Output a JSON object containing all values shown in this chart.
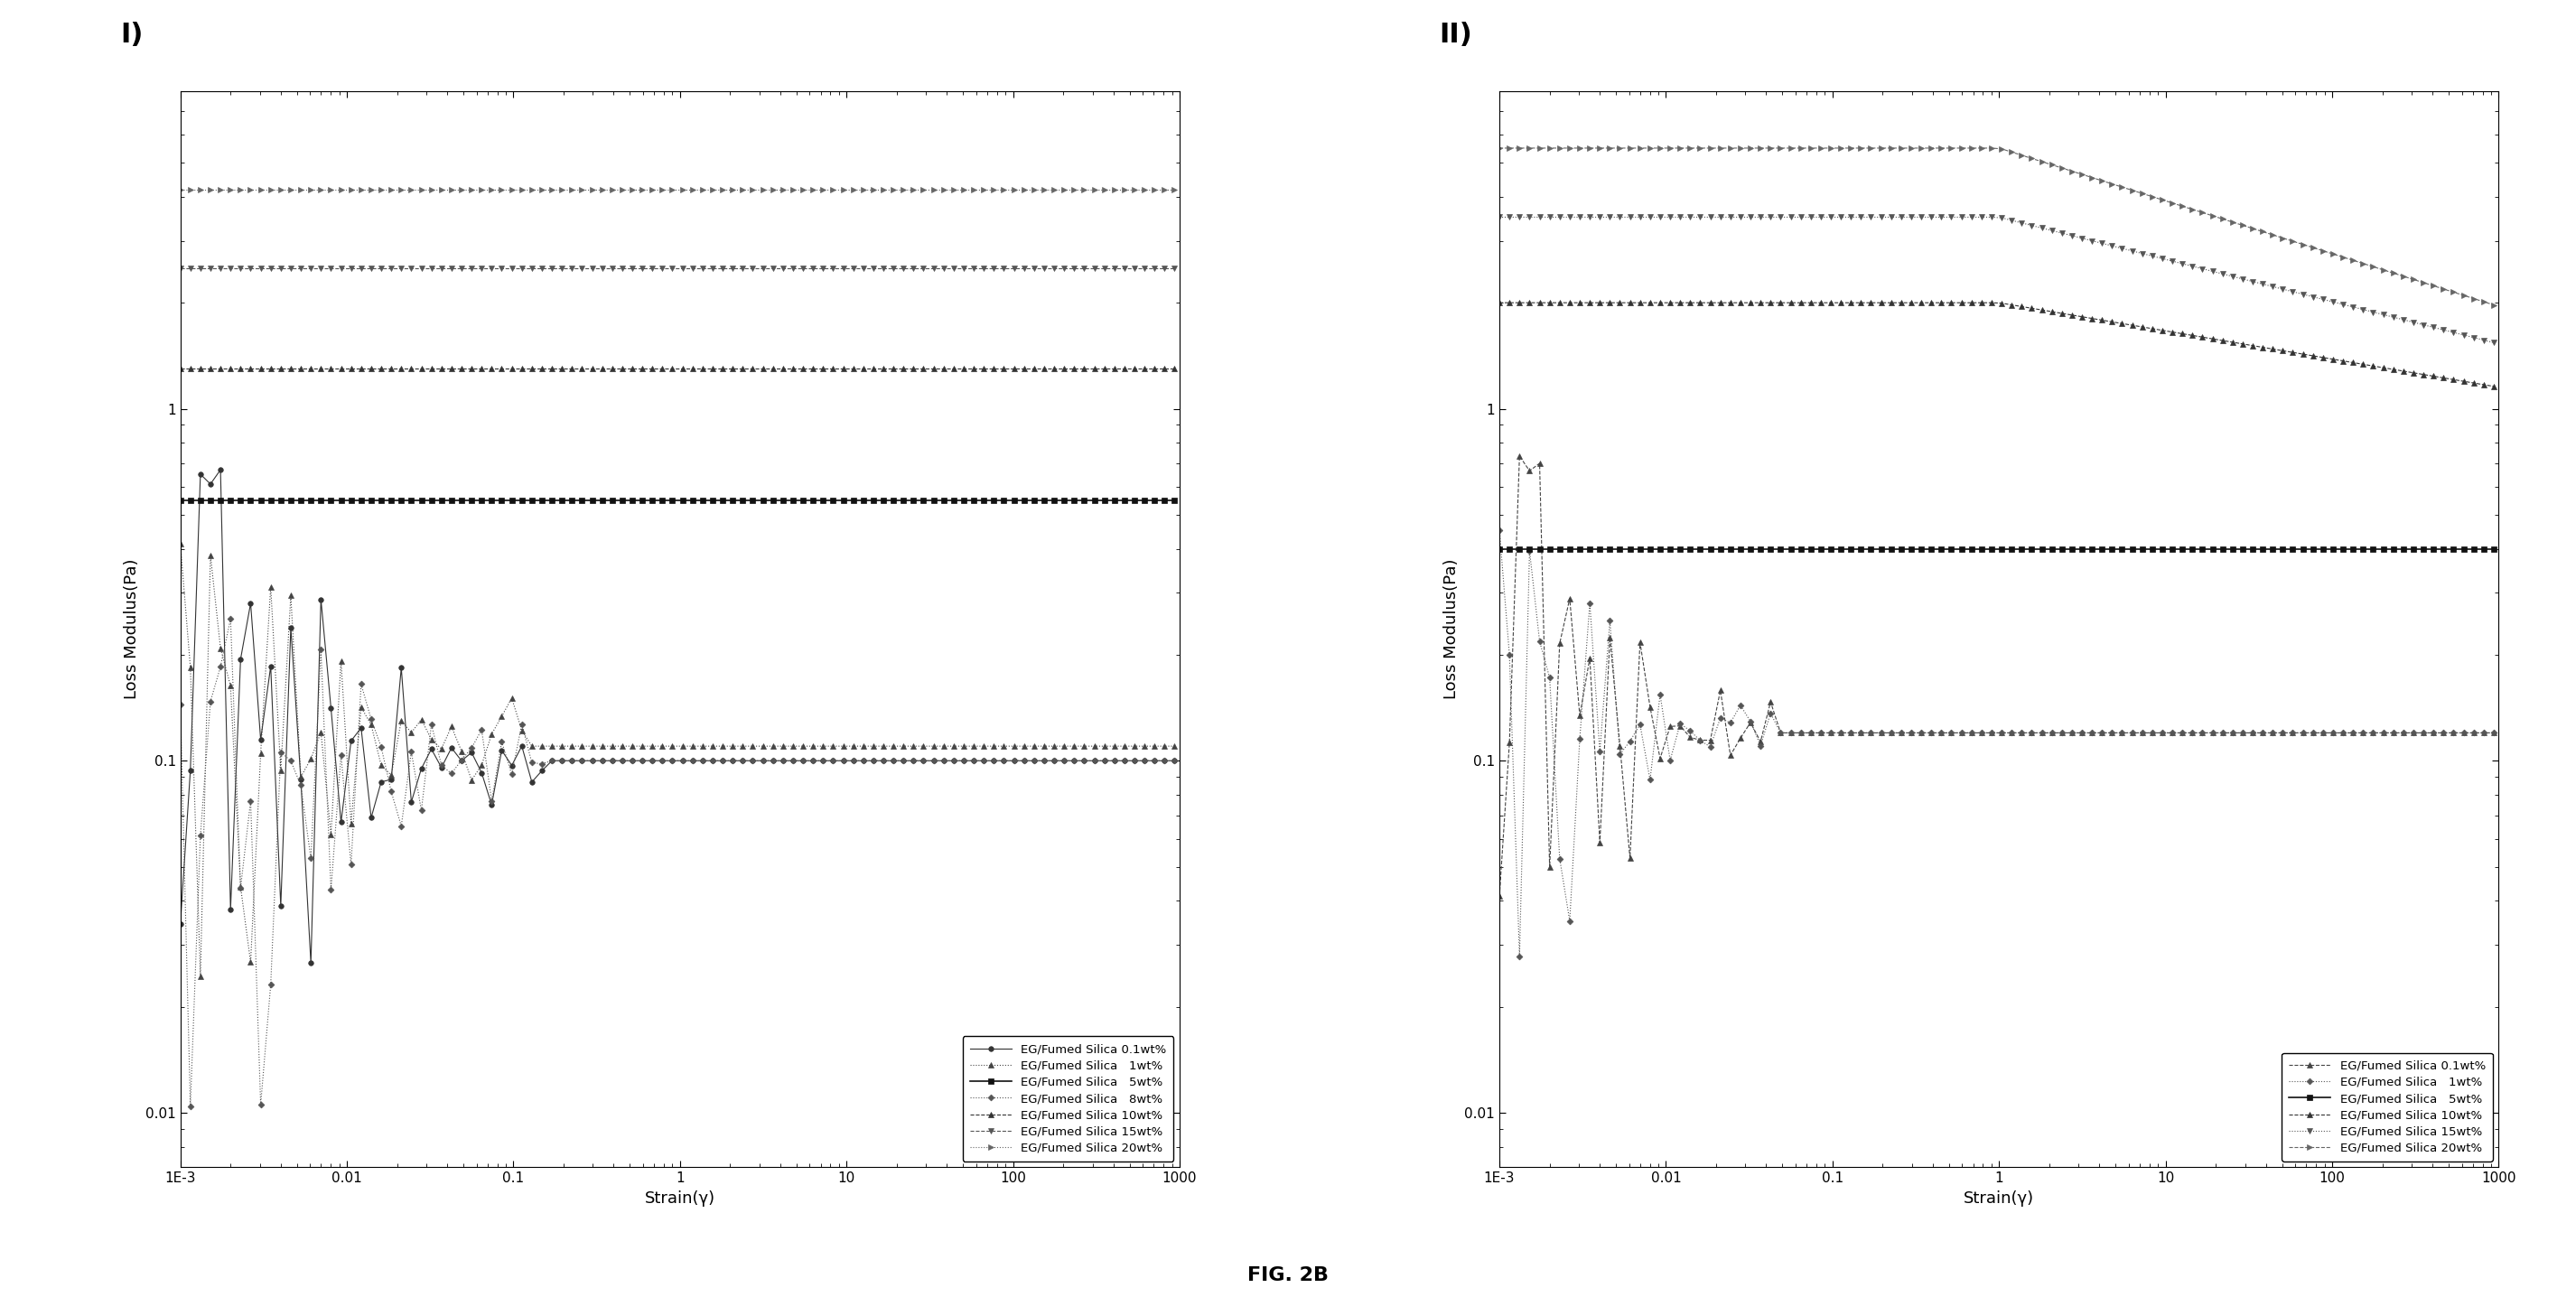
{
  "title": "FIG. 2B",
  "panel_I_label": "I)",
  "panel_II_label": "II)",
  "xlabel": "Strain(γ)",
  "ylabel": "Loss Modulus(Pa)",
  "xlim": [
    0.001,
    1000
  ],
  "ylim": [
    0.007,
    8
  ],
  "background_color": "#ffffff",
  "series_I": [
    {
      "label": "EG/Fumed Silica 0.1wt%",
      "level": 0.1,
      "marker": "o",
      "ls": "-",
      "color": "#333333",
      "ms": 4,
      "lw": 0.8,
      "oscillate": true,
      "osc_end": 0.05,
      "flat": true
    },
    {
      "label": "EG/Fumed Silica   1wt%",
      "level": 0.11,
      "marker": "^",
      "ls": ":",
      "color": "#444444",
      "ms": 4,
      "lw": 0.8,
      "oscillate": true,
      "osc_end": 0.04,
      "flat": true
    },
    {
      "label": "EG/Fumed Silica   5wt%",
      "level": 0.55,
      "marker": "s",
      "ls": "-",
      "color": "#111111",
      "ms": 5,
      "lw": 1.2,
      "oscillate": false,
      "osc_end": 0,
      "flat": true
    },
    {
      "label": "EG/Fumed Silica   8wt%",
      "level": 0.1,
      "marker": "D",
      "ls": ":",
      "color": "#555555",
      "ms": 3.5,
      "lw": 0.8,
      "oscillate": true,
      "osc_end": 0.05,
      "flat": true
    },
    {
      "label": "EG/Fumed Silica 10wt%",
      "level": 1.3,
      "marker": "^",
      "ls": "--",
      "color": "#333333",
      "ms": 4,
      "lw": 0.8,
      "oscillate": false,
      "osc_end": 0,
      "flat": true
    },
    {
      "label": "EG/Fumed Silica 15wt%",
      "level": 2.5,
      "marker": "v",
      "ls": "--",
      "color": "#555555",
      "ms": 4,
      "lw": 0.8,
      "oscillate": false,
      "osc_end": 0,
      "flat": true
    },
    {
      "label": "EG/Fumed Silica 20wt%",
      "level": 4.2,
      "marker": ">",
      "ls": ":",
      "color": "#666666",
      "ms": 4,
      "lw": 0.8,
      "oscillate": false,
      "osc_end": 0,
      "flat": true
    }
  ],
  "series_II": [
    {
      "label": "EG/Fumed Silica 0.1wt%",
      "level": 0.12,
      "marker": "^",
      "ls": "--",
      "color": "#444444",
      "ms": 4,
      "lw": 0.8,
      "oscillate": true,
      "osc_end": 0.015,
      "flat": true,
      "slope": 0.0
    },
    {
      "label": "EG/Fumed Silica   1wt%",
      "level": 0.12,
      "marker": "D",
      "ls": ":",
      "color": "#555555",
      "ms": 3.5,
      "lw": 0.8,
      "oscillate": true,
      "osc_end": 0.015,
      "flat": true,
      "slope": 0.0
    },
    {
      "label": "EG/Fumed Silica   5wt%",
      "level": 0.4,
      "marker": "s",
      "ls": "-",
      "color": "#111111",
      "ms": 5,
      "lw": 1.2,
      "oscillate": false,
      "osc_end": 0,
      "flat": true,
      "slope": 0.0
    },
    {
      "label": "EG/Fumed Silica 10wt%",
      "level": 2.0,
      "marker": "^",
      "ls": "--",
      "color": "#333333",
      "ms": 4,
      "lw": 0.8,
      "oscillate": false,
      "osc_end": 0,
      "flat": false,
      "slope": -0.08
    },
    {
      "label": "EG/Fumed Silica 15wt%",
      "level": 3.5,
      "marker": "v",
      "ls": ":",
      "color": "#555555",
      "ms": 4,
      "lw": 0.8,
      "oscillate": false,
      "osc_end": 0,
      "flat": false,
      "slope": -0.12
    },
    {
      "label": "EG/Fumed Silica 20wt%",
      "level": 5.5,
      "marker": ">",
      "ls": "--",
      "color": "#666666",
      "ms": 4,
      "lw": 0.8,
      "oscillate": false,
      "osc_end": 0,
      "flat": false,
      "slope": -0.15
    }
  ]
}
